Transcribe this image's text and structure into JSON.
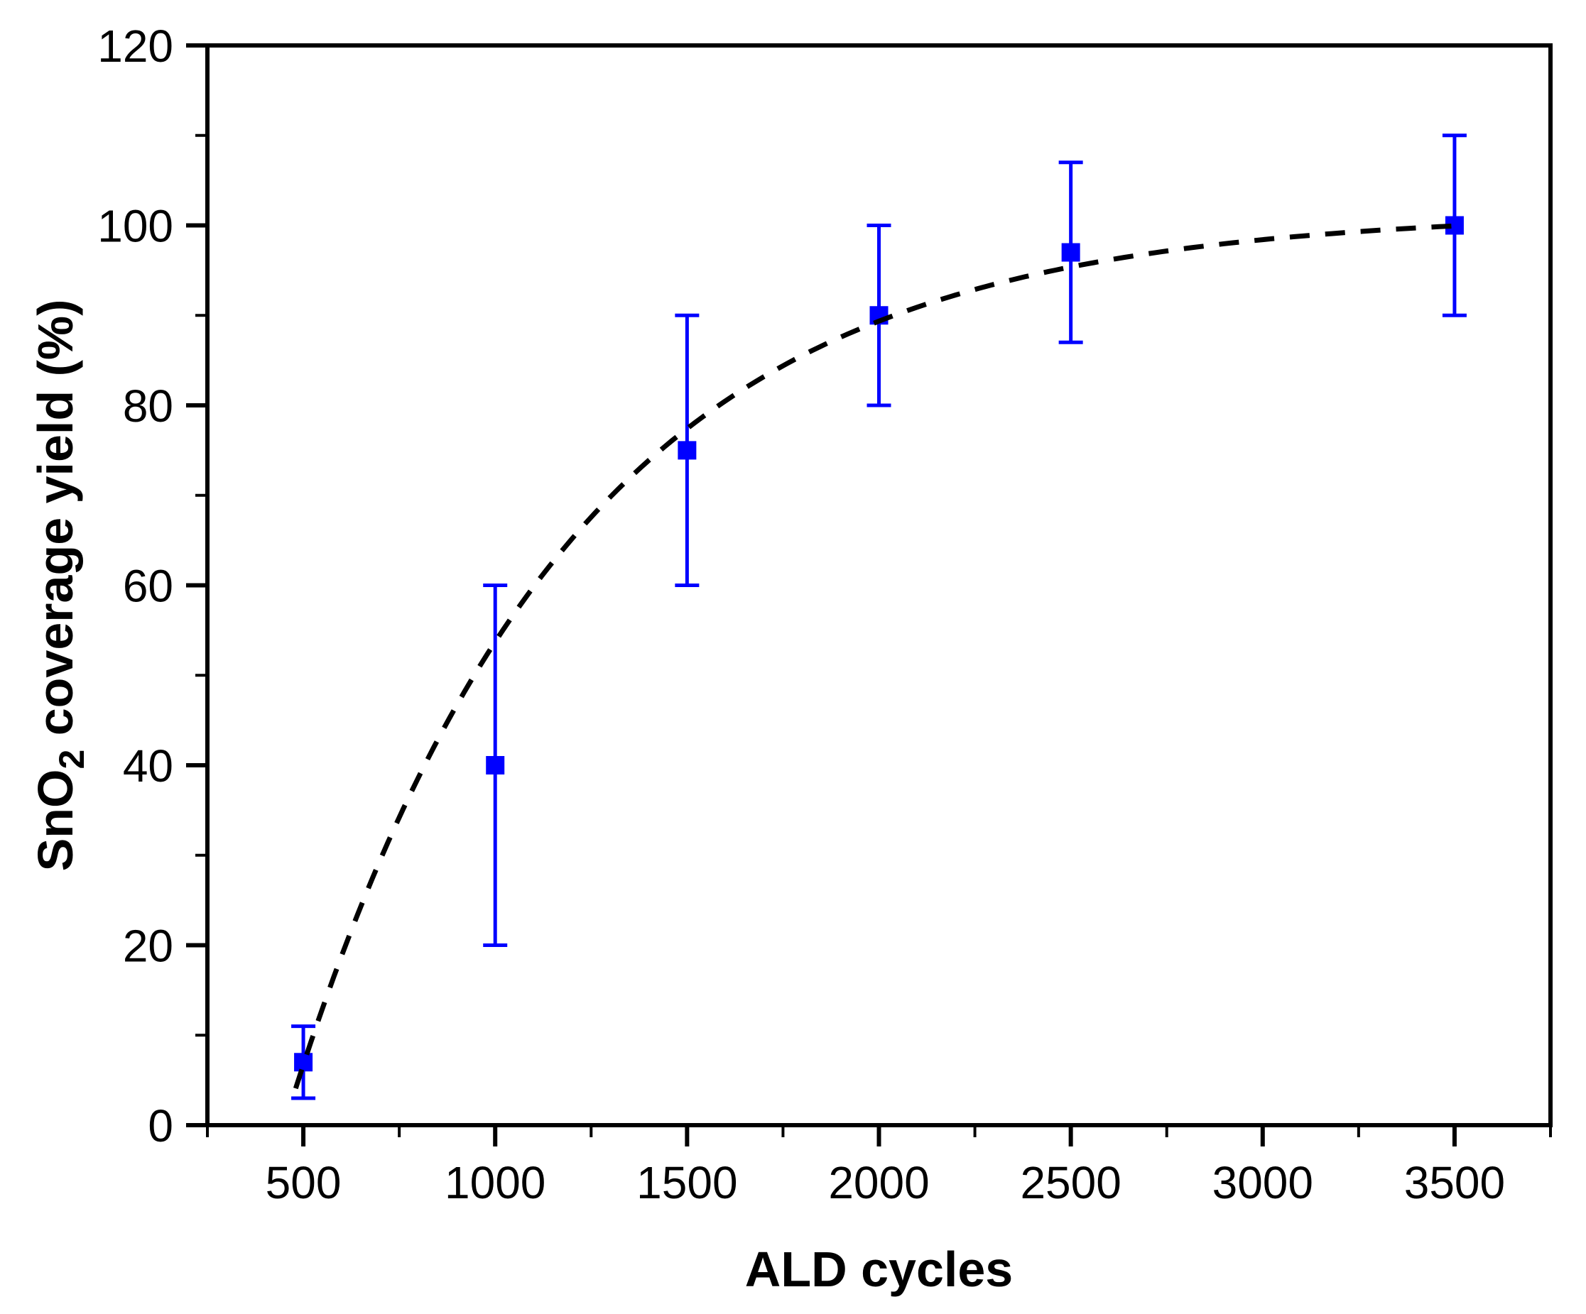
{
  "chart_data": {
    "type": "scatter",
    "title": "",
    "xlabel": "ALD cycles",
    "ylabel_parts": {
      "prefix": "SnO",
      "subscript": "2",
      "suffix": " coverage yield (%)"
    },
    "xlim": [
      250,
      3750
    ],
    "ylim": [
      0,
      120
    ],
    "x_major_ticks": [
      500,
      1000,
      1500,
      2000,
      2500,
      3000,
      3500
    ],
    "x_minor_ticks": [
      250,
      750,
      1250,
      1750,
      2250,
      2750,
      3250,
      3750
    ],
    "y_major_ticks": [
      0,
      20,
      40,
      60,
      80,
      100,
      120
    ],
    "y_minor_ticks": [
      10,
      30,
      50,
      70,
      90,
      110
    ],
    "grid": false,
    "legend": false,
    "series": [
      {
        "marker": "square",
        "color": "#0000ff",
        "points": [
          {
            "x": 500,
            "y": 7,
            "err": 4
          },
          {
            "x": 1000,
            "y": 40,
            "err": 20
          },
          {
            "x": 1500,
            "y": 75,
            "err": 15
          },
          {
            "x": 2000,
            "y": 90,
            "err": 10
          },
          {
            "x": 2500,
            "y": 97,
            "err": 10
          },
          {
            "x": 3500,
            "y": 100,
            "err": 10
          }
        ]
      }
    ],
    "fit_curve": {
      "style": "dashed",
      "color": "#000000",
      "model": "y = A*(1-exp(-(x-x0)/tau))",
      "A": 101.5,
      "x0": 450,
      "tau": 730,
      "x_start": 480,
      "x_end": 3500
    },
    "colors": {
      "marker": "#0000ff",
      "axis": "#000000",
      "background": "#ffffff"
    }
  }
}
